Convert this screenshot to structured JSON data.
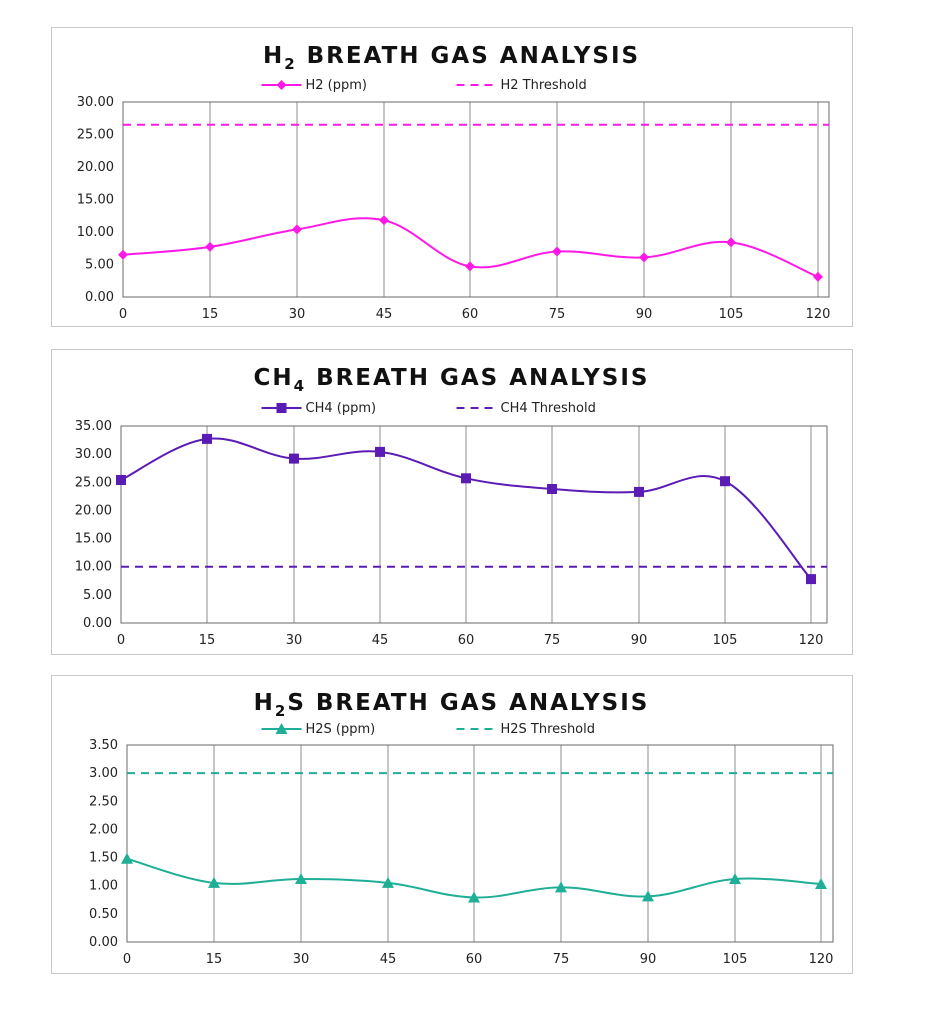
{
  "chart_data": [
    {
      "type": "line",
      "title_main": "H",
      "title_sub": "2",
      "title_rest": " BREATH GAS ANALYSIS",
      "x": [
        0,
        15,
        30,
        45,
        60,
        75,
        90,
        105,
        120
      ],
      "ylim": [
        0,
        30
      ],
      "yticks": [
        "0.00",
        "5.00",
        "10.00",
        "15.00",
        "20.00",
        "25.00",
        "30.00"
      ],
      "series": [
        {
          "name": "H2 (ppm)",
          "values": [
            6.5,
            7.7,
            10.4,
            11.8,
            4.7,
            7.0,
            6.1,
            8.4,
            3.1
          ],
          "color": "#ff19e6",
          "marker": "diamond"
        }
      ],
      "threshold": {
        "name": "H2 Threshold",
        "value": 26.5,
        "color": "#ff19e6"
      },
      "legend": "top"
    },
    {
      "type": "line",
      "title_main": "CH",
      "title_sub": "4",
      "title_rest": " BREATH GAS ANALYSIS",
      "x": [
        0,
        15,
        30,
        45,
        60,
        75,
        90,
        105,
        120
      ],
      "ylim": [
        0,
        35
      ],
      "yticks": [
        "0.00",
        "5.00",
        "10.00",
        "15.00",
        "20.00",
        "25.00",
        "30.00",
        "35.00"
      ],
      "series": [
        {
          "name": "CH4 (ppm)",
          "values": [
            25.4,
            32.7,
            29.2,
            30.4,
            25.7,
            23.8,
            23.3,
            25.2,
            7.8
          ],
          "color": "#5b1bb5",
          "marker": "square"
        }
      ],
      "threshold": {
        "name": "CH4 Threshold",
        "value": 10.0,
        "color": "#5b1bb5"
      },
      "legend": "top"
    },
    {
      "type": "line",
      "title_main": "H",
      "title_sub": "2",
      "title_rest": "S BREATH GAS ANALYSIS",
      "x": [
        0,
        15,
        30,
        45,
        60,
        75,
        90,
        105,
        120
      ],
      "ylim": [
        0,
        3.5
      ],
      "yticks": [
        "0.00",
        "0.50",
        "1.00",
        "1.50",
        "2.00",
        "2.50",
        "3.00",
        "3.50"
      ],
      "series": [
        {
          "name": "H2S (ppm)",
          "values": [
            1.48,
            1.05,
            1.12,
            1.05,
            0.79,
            0.97,
            0.81,
            1.12,
            1.03
          ],
          "color": "#1fae96",
          "marker": "triangle"
        }
      ],
      "threshold": {
        "name": "H2S Threshold",
        "value": 3.0,
        "color": "#1fae96"
      },
      "legend": "top"
    }
  ]
}
